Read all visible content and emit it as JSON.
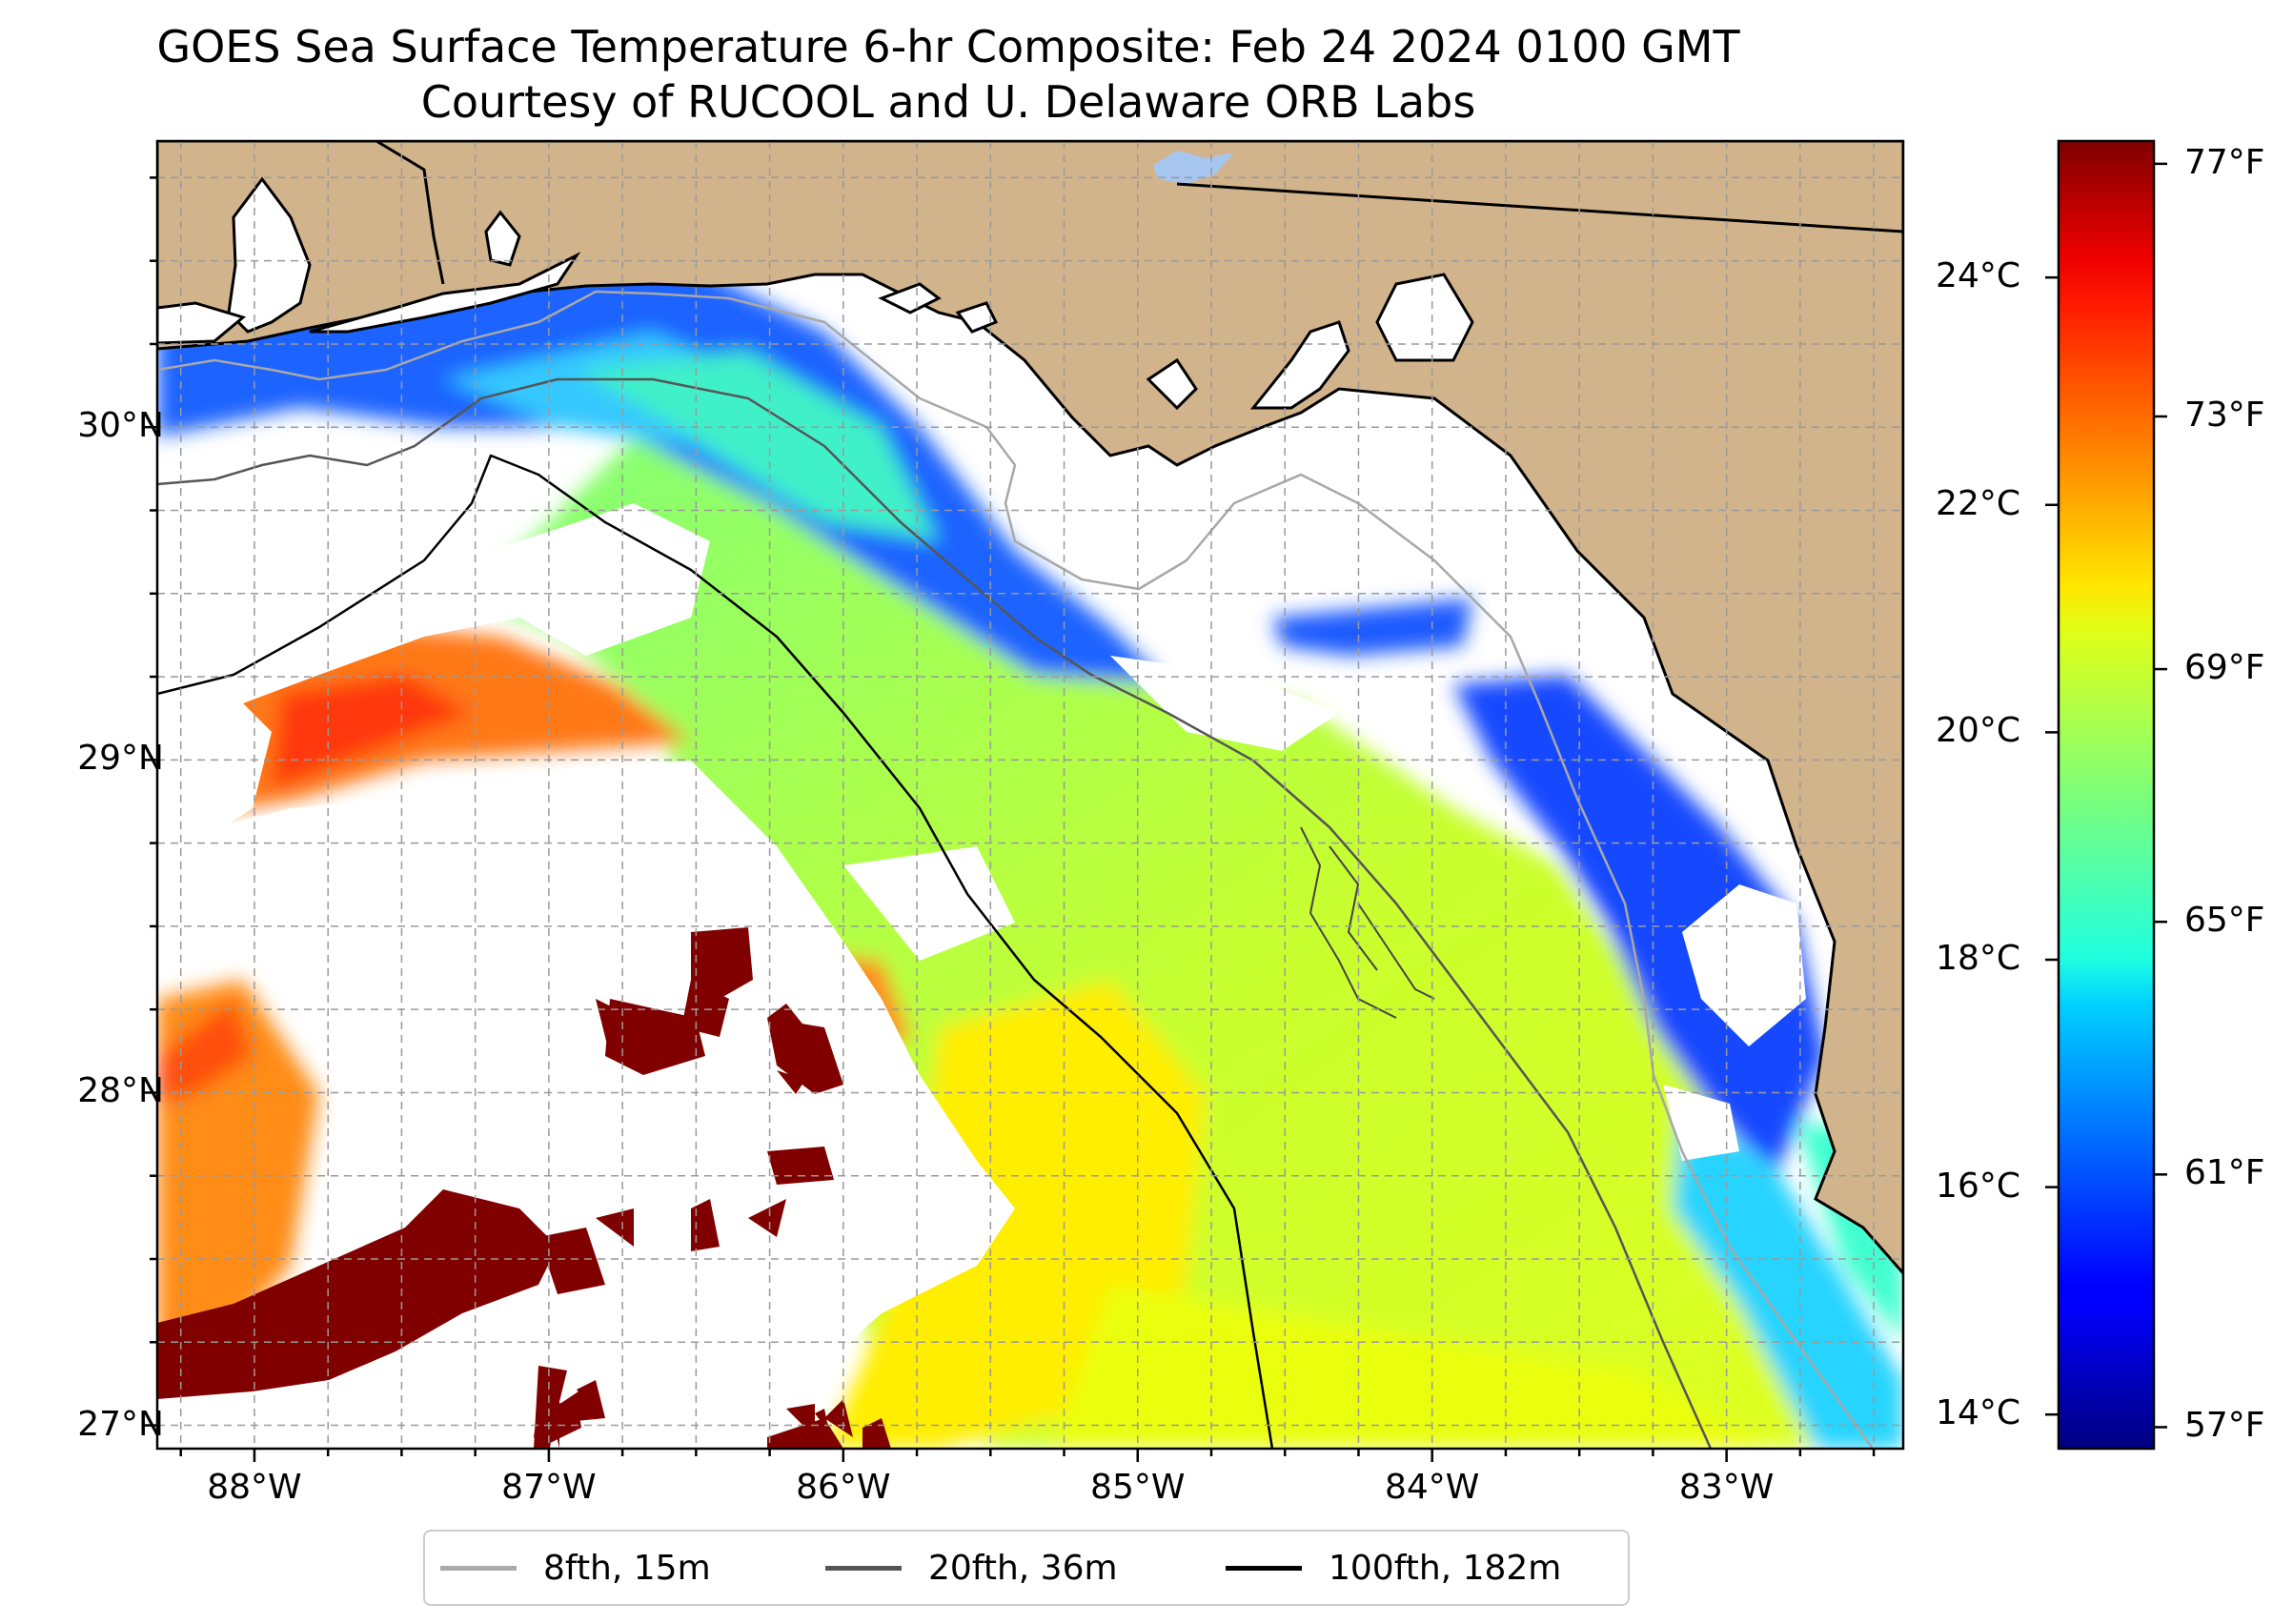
{
  "title": {
    "line1": "GOES Sea Surface Temperature 6-hr Composite: Feb 24 2024 0100 GMT",
    "line2": "Courtesy of RUCOOL and U. Delaware ORB Labs"
  },
  "map": {
    "lon_range": [
      -88.33,
      -82.4
    ],
    "lat_range": [
      26.93,
      30.86
    ],
    "lat_ticks": [
      {
        "value": 30,
        "label": "30°N"
      },
      {
        "value": 29,
        "label": "29°N"
      },
      {
        "value": 28,
        "label": "28°N"
      },
      {
        "value": 27,
        "label": "27°N"
      }
    ],
    "lon_ticks": [
      {
        "value": -88,
        "label": "88°W"
      },
      {
        "value": -87,
        "label": "87°W"
      },
      {
        "value": -86,
        "label": "86°W"
      },
      {
        "value": -85,
        "label": "85°W"
      },
      {
        "value": -84,
        "label": "84°W"
      },
      {
        "value": -83,
        "label": "83°W"
      }
    ],
    "grid": true,
    "land_color": "#d2b48c",
    "water_background": "#ffffff"
  },
  "colorbar": {
    "colormap": "jet",
    "range_c": [
      13.7,
      25.2
    ],
    "celsius_ticks": [
      {
        "value": 24,
        "label": "24°C"
      },
      {
        "value": 22,
        "label": "22°C"
      },
      {
        "value": 20,
        "label": "20°C"
      },
      {
        "value": 18,
        "label": "18°C"
      },
      {
        "value": 16,
        "label": "16°C"
      },
      {
        "value": 14,
        "label": "14°C"
      }
    ],
    "fahrenheit_ticks": [
      {
        "value": 77,
        "label": "77°F"
      },
      {
        "value": 73,
        "label": "73°F"
      },
      {
        "value": 69,
        "label": "69°F"
      },
      {
        "value": 65,
        "label": "65°F"
      },
      {
        "value": 61,
        "label": "61°F"
      },
      {
        "value": 57,
        "label": "57°F"
      }
    ]
  },
  "legend": {
    "placement": "bottom-center",
    "items": [
      {
        "label": "8fth, 15m",
        "color": "#aaaaaa"
      },
      {
        "label": "20fth, 36m",
        "color": "#555555"
      },
      {
        "label": "100fth, 182m",
        "color": "#000000"
      }
    ]
  }
}
